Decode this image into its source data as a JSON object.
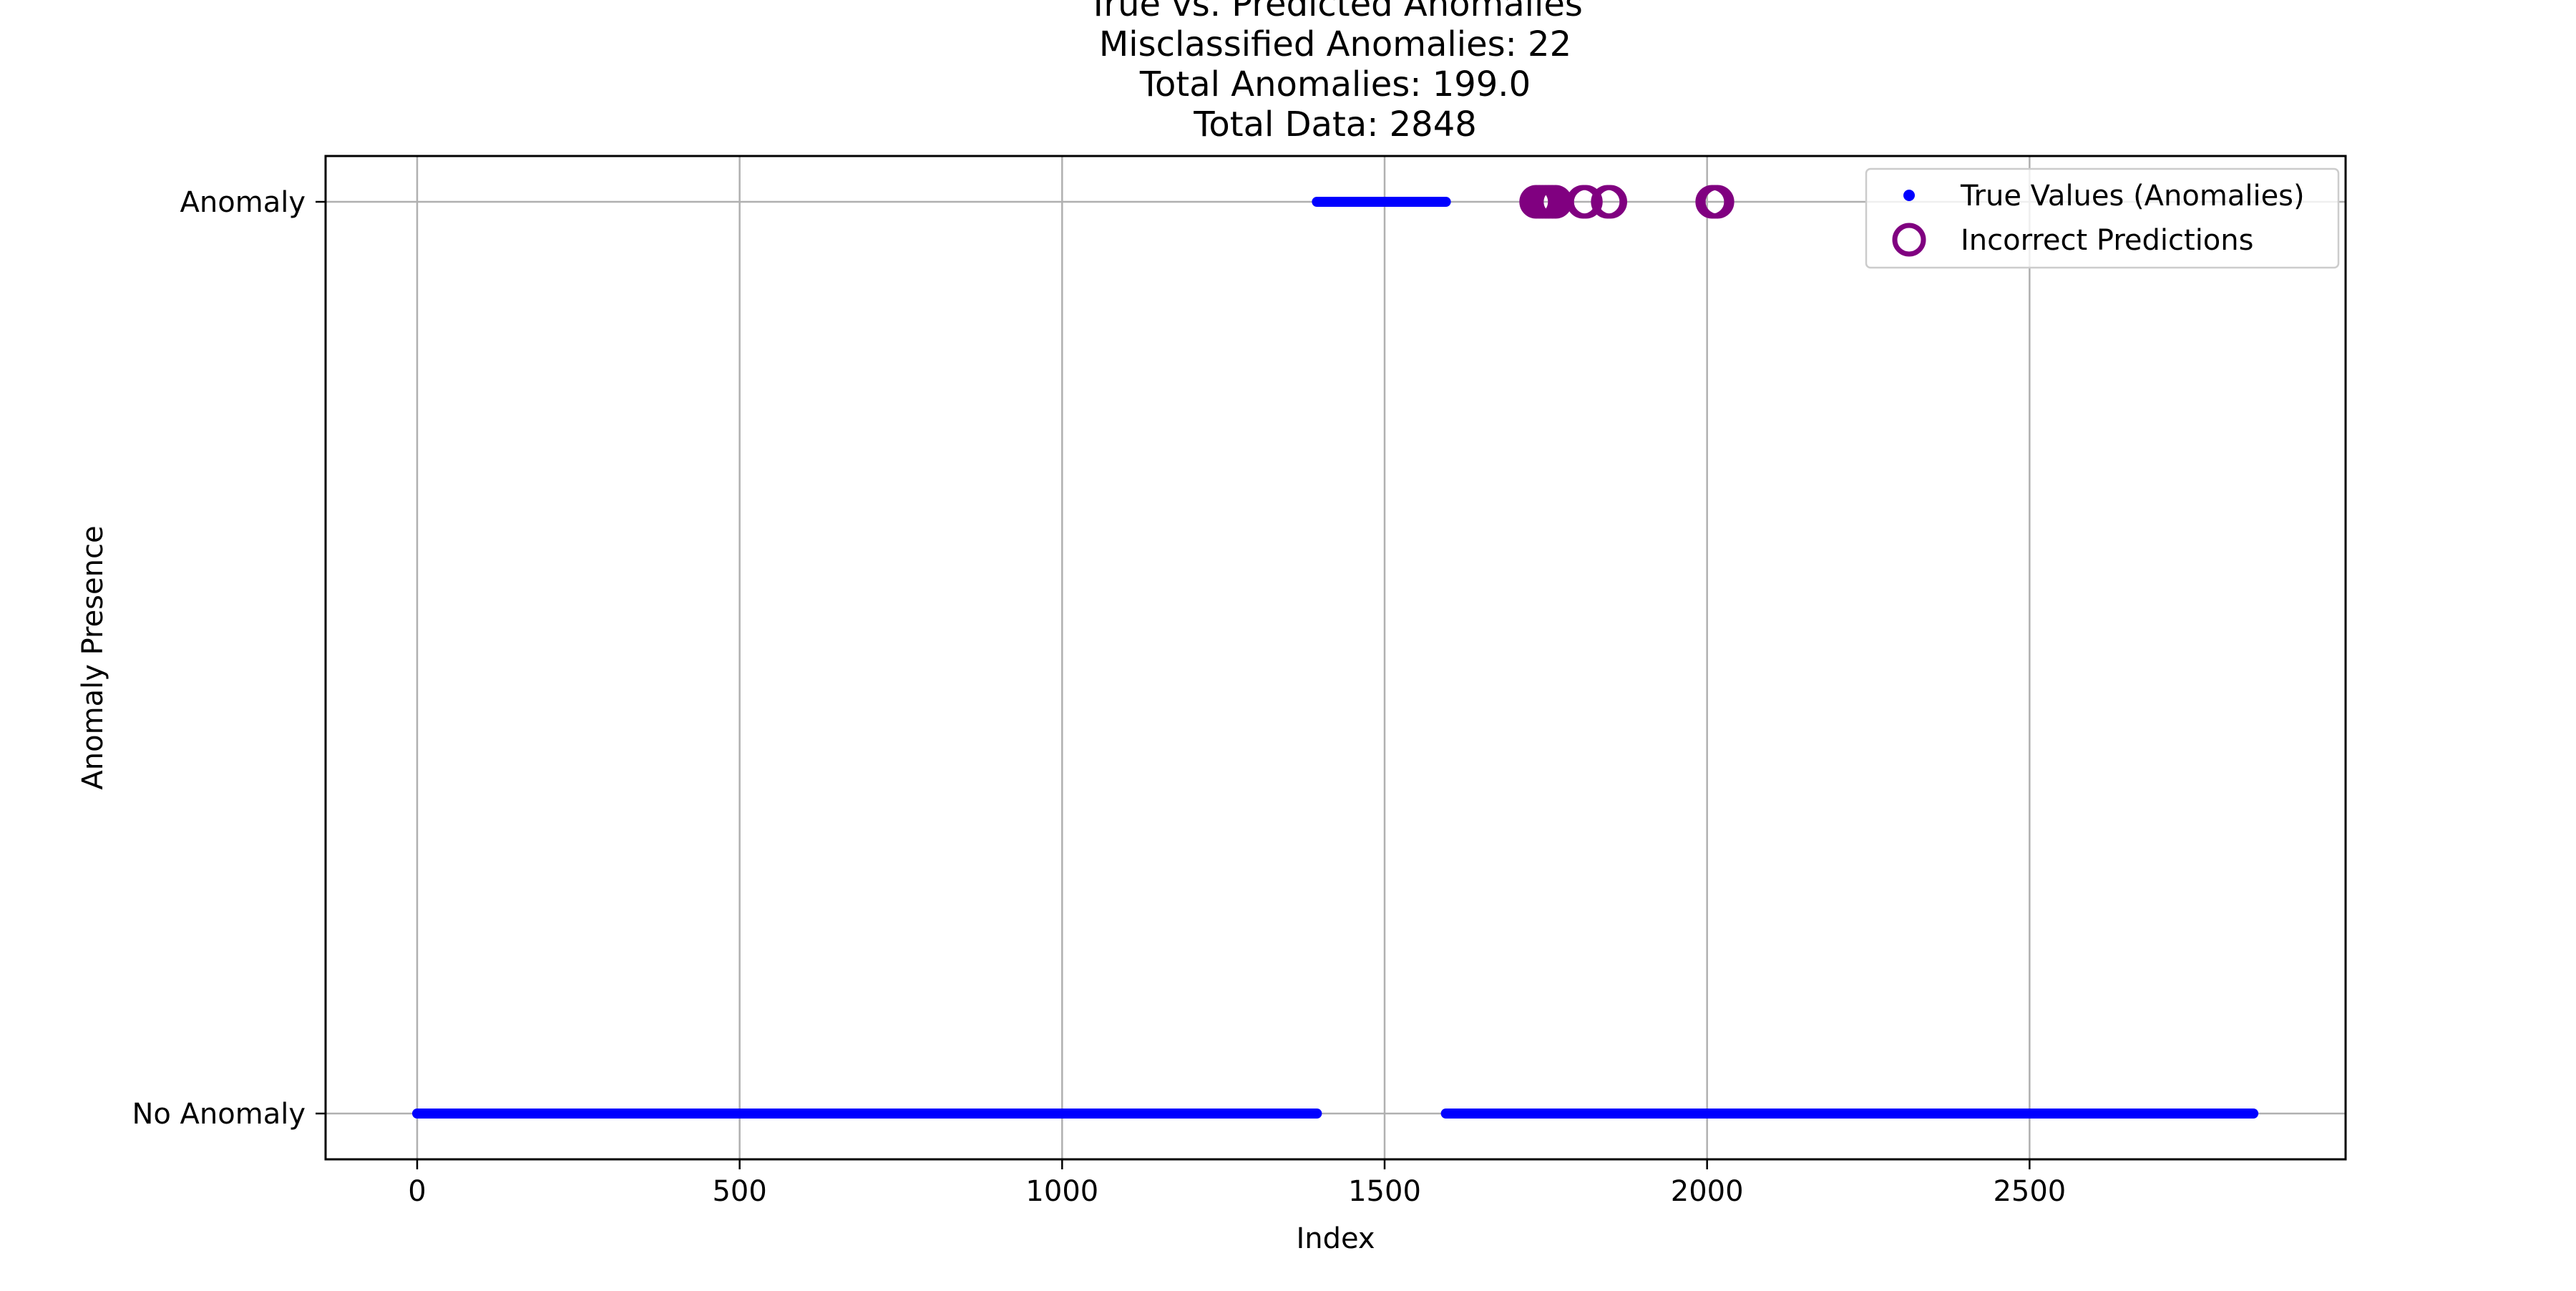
{
  "chart_data": {
    "type": "scatter",
    "title_lines": [
      "True vs. Predicted Anomalies",
      "Misclassified Anomalies: 22",
      "Total Anomalies: 199.0",
      "Total Data: 2848"
    ],
    "xlabel": "Index",
    "ylabel": "Anomaly Presence",
    "xlim": [
      -142,
      2990
    ],
    "ylim": [
      -0.05,
      1.05
    ],
    "xticks": [
      0,
      500,
      1000,
      1500,
      2000,
      2500
    ],
    "yticks": [
      {
        "value": 0,
        "label": "No Anomaly"
      },
      {
        "value": 1,
        "label": "Anomaly"
      }
    ],
    "grid": true,
    "legend_position": "top-right",
    "series": [
      {
        "name": "True Values (Anomalies)",
        "marker": "dot",
        "color": "#0000ff",
        "segments": [
          {
            "x_start": 0,
            "x_end": 1395,
            "y": 0
          },
          {
            "x_start": 1395,
            "x_end": 1595,
            "y": 1
          },
          {
            "x_start": 1595,
            "x_end": 2847,
            "y": 0
          }
        ]
      },
      {
        "name": "Incorrect Predictions",
        "marker": "hollow-circle",
        "color": "#800080",
        "points": [
          {
            "x": 1735,
            "y": 1
          },
          {
            "x": 1740,
            "y": 1
          },
          {
            "x": 1745,
            "y": 1
          },
          {
            "x": 1750,
            "y": 1
          },
          {
            "x": 1755,
            "y": 1
          },
          {
            "x": 1760,
            "y": 1
          },
          {
            "x": 1765,
            "y": 1
          },
          {
            "x": 1808,
            "y": 1
          },
          {
            "x": 1812,
            "y": 1
          },
          {
            "x": 1846,
            "y": 1
          },
          {
            "x": 1850,
            "y": 1
          },
          {
            "x": 2008,
            "y": 1
          },
          {
            "x": 2012,
            "y": 1
          },
          {
            "x": 2016,
            "y": 1
          }
        ]
      }
    ]
  }
}
